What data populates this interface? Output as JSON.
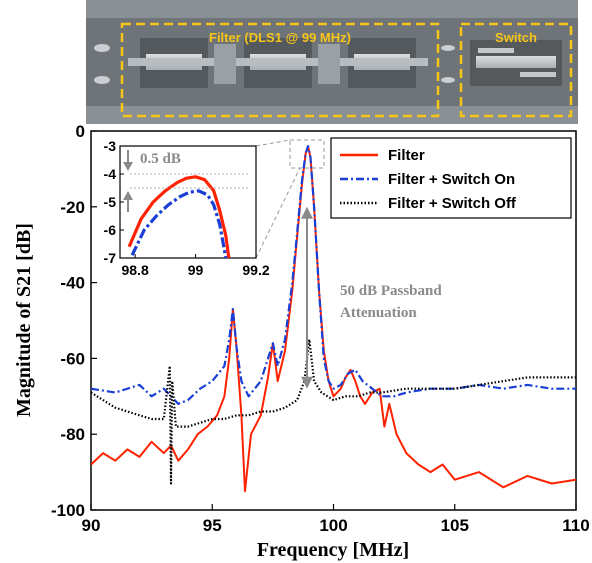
{
  "photo": {
    "filter_label": "Filter (DLS1 @ 99 MHz)",
    "switch_label": "Switch"
  },
  "chart_data": {
    "type": "line",
    "xlabel": "Frequency [MHz]",
    "ylabel": "Magnitude of S21 [dB]",
    "xlim": [
      90,
      110
    ],
    "ylim": [
      -100,
      0
    ],
    "xticks": [
      "90",
      "95",
      "100",
      "105",
      "110"
    ],
    "yticks": [
      "0",
      "-20",
      "-40",
      "-60",
      "-80",
      "-100"
    ],
    "grid": false,
    "legend_position": "top-right",
    "series": [
      {
        "name": "Filter",
        "color": "#ff2200",
        "style": "solid",
        "x": [
          90,
          90.5,
          91,
          91.5,
          92,
          92.5,
          93,
          93.3,
          93.6,
          94,
          94.4,
          94.8,
          95.2,
          95.5,
          95.7,
          95.85,
          96,
          96.2,
          96.35,
          96.6,
          97,
          97.3,
          97.5,
          97.7,
          98,
          98.3,
          98.5,
          98.7,
          98.85,
          98.95,
          99.05,
          99.2,
          99.4,
          99.6,
          99.8,
          100,
          100.3,
          100.5,
          100.7,
          100.9,
          101.1,
          101.3,
          101.6,
          101.9,
          102.1,
          102.3,
          102.6,
          103,
          103.5,
          104,
          104.5,
          105,
          106,
          107,
          108,
          109,
          110
        ],
        "y": [
          -88,
          -85,
          -87,
          -84,
          -86,
          -82,
          -85,
          -83,
          -87,
          -84,
          -80,
          -78,
          -75,
          -70,
          -60,
          -47,
          -57,
          -75,
          -95,
          -80,
          -75,
          -65,
          -56,
          -66,
          -58,
          -42,
          -28,
          -14,
          -6,
          -4,
          -7,
          -20,
          -42,
          -58,
          -66,
          -70,
          -68,
          -65,
          -63,
          -66,
          -70,
          -72,
          -69,
          -68,
          -78,
          -72,
          -80,
          -85,
          -88,
          -90,
          -88,
          -92,
          -90,
          -94,
          -91,
          -93,
          -92
        ]
      },
      {
        "name": "Filter + Switch On",
        "color": "#1a3fd6",
        "style": "dash-dot",
        "x": [
          90,
          91,
          92,
          92.5,
          93,
          93.3,
          93.6,
          94,
          94.5,
          95,
          95.5,
          95.7,
          95.85,
          96,
          96.2,
          96.5,
          97,
          97.3,
          97.5,
          97.7,
          98,
          98.3,
          98.5,
          98.7,
          98.85,
          98.95,
          99.05,
          99.2,
          99.4,
          99.6,
          99.8,
          100,
          100.3,
          100.6,
          100.9,
          101.2,
          101.6,
          102,
          102.5,
          103,
          104,
          105,
          106,
          107,
          108,
          109,
          110
        ],
        "y": [
          -68,
          -69,
          -67,
          -70,
          -68,
          -70,
          -72,
          -71,
          -68,
          -66,
          -62,
          -55,
          -47,
          -57,
          -66,
          -70,
          -66,
          -60,
          -56,
          -62,
          -55,
          -40,
          -27,
          -13,
          -6,
          -4,
          -7,
          -20,
          -42,
          -60,
          -66,
          -68,
          -67,
          -64,
          -63,
          -66,
          -68,
          -70,
          -70,
          -69,
          -68,
          -68,
          -67,
          -68,
          -67,
          -68,
          -68
        ]
      },
      {
        "name": "Filter + Switch Off",
        "color": "#000000",
        "style": "dotted",
        "x": [
          90,
          90.5,
          91,
          91.5,
          92,
          92.5,
          93,
          93.25,
          93.3,
          93.35,
          93.5,
          94,
          94.5,
          95,
          95.5,
          96,
          96.5,
          97,
          97.5,
          98,
          98.5,
          98.8,
          99,
          99.2,
          99.5,
          100,
          100.5,
          101,
          101.5,
          102,
          103,
          104,
          105,
          106,
          107,
          108,
          109,
          110
        ],
        "y": [
          -69,
          -71,
          -73,
          -74,
          -75,
          -76,
          -76,
          -62,
          -93,
          -66,
          -78,
          -78,
          -77,
          -76,
          -76,
          -75,
          -75,
          -74,
          -74,
          -73,
          -71,
          -66,
          -55,
          -66,
          -69,
          -71,
          -70,
          -70,
          -69,
          -69,
          -68,
          -68,
          -68,
          -67,
          -66,
          -65,
          -65,
          -65
        ]
      }
    ],
    "inset": {
      "xlim": [
        98.75,
        99.2
      ],
      "ylim": [
        -7,
        -3
      ],
      "xticks": [
        "98.8",
        "99",
        "99.2"
      ],
      "yticks": [
        "-3",
        "-4",
        "-5",
        "-6",
        "-7"
      ],
      "annotation": "0.5 dB",
      "series": [
        {
          "name": "Filter",
          "x": [
            98.78,
            98.82,
            98.86,
            98.9,
            98.94,
            98.97,
            99.0,
            99.03,
            99.06,
            99.08,
            99.1,
            99.11
          ],
          "y": [
            -6.6,
            -5.6,
            -5.0,
            -4.6,
            -4.3,
            -4.15,
            -4.1,
            -4.2,
            -4.6,
            -5.3,
            -6.2,
            -7.0
          ]
        },
        {
          "name": "Filter + Switch On",
          "x": [
            98.79,
            98.83,
            98.87,
            98.91,
            98.95,
            98.98,
            99.01,
            99.04,
            99.06,
            99.08,
            99.09,
            99.1
          ],
          "y": [
            -6.9,
            -6.0,
            -5.5,
            -5.1,
            -4.8,
            -4.65,
            -4.6,
            -4.75,
            -5.1,
            -5.8,
            -6.4,
            -7.0
          ]
        }
      ]
    },
    "annotation": "50 dB Passband Attenuation"
  }
}
